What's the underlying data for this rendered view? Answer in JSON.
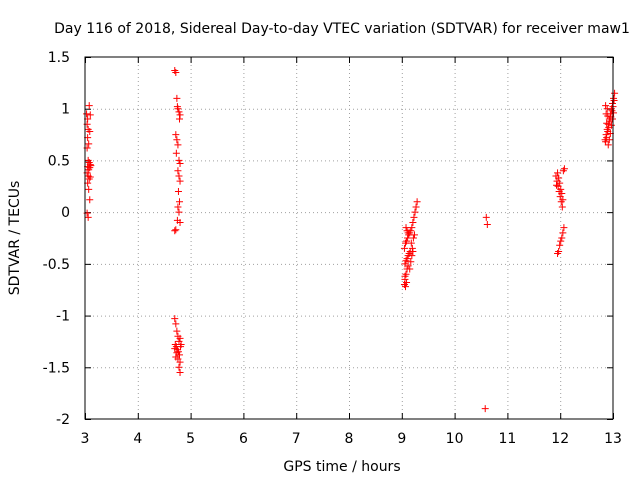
{
  "chart_data": {
    "type": "scatter",
    "title": "Day 116 of 2018, Sidereal Day-to-day VTEC variation (SDTVAR) for receiver maw1",
    "xlabel": "GPS time / hours",
    "ylabel": "SDTVAR / TECUs",
    "xlim": [
      3,
      13
    ],
    "ylim": [
      -2,
      1.5
    ],
    "xticks": [
      3,
      4,
      5,
      6,
      7,
      8,
      9,
      10,
      11,
      12,
      13
    ],
    "xtick_labels": [
      "3",
      "4",
      "5",
      "6",
      "7",
      "8",
      "9",
      "10",
      "11",
      "12",
      "13"
    ],
    "yticks": [
      -2,
      -1.5,
      -1,
      -0.5,
      0,
      0.5,
      1,
      1.5
    ],
    "ytick_labels": [
      "-2",
      "-1.5",
      "-1",
      "-0.5",
      "0",
      "0.5",
      "1",
      "1.5"
    ],
    "grid": true,
    "marker": "+",
    "color": "#ff0000",
    "series": [
      {
        "name": "maw1",
        "points": [
          [
            3.03,
            0.95
          ],
          [
            3.05,
            0.9
          ],
          [
            3.08,
            1.03
          ],
          [
            3.1,
            0.94
          ],
          [
            3.04,
            0.85
          ],
          [
            3.06,
            0.8
          ],
          [
            3.09,
            0.78
          ],
          [
            3.05,
            0.72
          ],
          [
            3.07,
            0.66
          ],
          [
            3.04,
            0.62
          ],
          [
            3.06,
            0.5
          ],
          [
            3.08,
            0.48
          ],
          [
            3.1,
            0.46
          ],
          [
            3.05,
            0.44
          ],
          [
            3.07,
            0.41
          ],
          [
            3.09,
            0.43
          ],
          [
            3.11,
            0.45
          ],
          [
            3.04,
            0.38
          ],
          [
            3.06,
            0.35
          ],
          [
            3.08,
            0.32
          ],
          [
            3.1,
            0.34
          ],
          [
            3.05,
            0.28
          ],
          [
            3.07,
            0.22
          ],
          [
            3.09,
            0.12
          ],
          [
            3.04,
            -0.01
          ],
          [
            3.06,
            -0.05
          ],
          [
            4.7,
            1.37
          ],
          [
            4.72,
            1.35
          ],
          [
            4.74,
            1.1
          ],
          [
            4.76,
            1.0
          ],
          [
            4.78,
            0.97
          ],
          [
            4.8,
            0.94
          ],
          [
            4.75,
            1.02
          ],
          [
            4.79,
            0.9
          ],
          [
            4.72,
            0.75
          ],
          [
            4.74,
            0.7
          ],
          [
            4.76,
            0.65
          ],
          [
            4.73,
            0.57
          ],
          [
            4.78,
            0.5
          ],
          [
            4.8,
            0.47
          ],
          [
            4.76,
            0.4
          ],
          [
            4.78,
            0.35
          ],
          [
            4.8,
            0.3
          ],
          [
            4.77,
            0.2
          ],
          [
            4.79,
            0.1
          ],
          [
            4.76,
            0.05
          ],
          [
            4.78,
            0.0
          ],
          [
            4.75,
            -0.08
          ],
          [
            4.72,
            -0.17
          ],
          [
            4.7,
            -0.18
          ],
          [
            4.8,
            -0.1
          ],
          [
            4.7,
            -1.03
          ],
          [
            4.72,
            -1.08
          ],
          [
            4.74,
            -1.15
          ],
          [
            4.76,
            -1.2
          ],
          [
            4.78,
            -1.25
          ],
          [
            4.8,
            -1.22
          ],
          [
            4.71,
            -1.28
          ],
          [
            4.73,
            -1.3
          ],
          [
            4.75,
            -1.33
          ],
          [
            4.77,
            -1.35
          ],
          [
            4.79,
            -1.38
          ],
          [
            4.81,
            -1.3
          ],
          [
            4.72,
            -1.4
          ],
          [
            4.76,
            -1.42
          ],
          [
            4.8,
            -1.45
          ],
          [
            4.78,
            -1.5
          ],
          [
            4.8,
            -1.55
          ],
          [
            4.74,
            -1.36
          ],
          [
            4.82,
            -1.28
          ],
          [
            4.7,
            -1.32
          ],
          [
            9.05,
            -0.7
          ],
          [
            9.06,
            -0.65
          ],
          [
            9.08,
            -0.6
          ],
          [
            9.1,
            -0.55
          ],
          [
            9.12,
            -0.52
          ],
          [
            9.06,
            -0.5
          ],
          [
            9.08,
            -0.47
          ],
          [
            9.1,
            -0.45
          ],
          [
            9.12,
            -0.42
          ],
          [
            9.14,
            -0.4
          ],
          [
            9.16,
            -0.38
          ],
          [
            9.05,
            -0.35
          ],
          [
            9.07,
            -0.3
          ],
          [
            9.09,
            -0.28
          ],
          [
            9.11,
            -0.25
          ],
          [
            9.13,
            -0.22
          ],
          [
            9.15,
            -0.2
          ],
          [
            9.17,
            -0.18
          ],
          [
            9.19,
            -0.15
          ],
          [
            9.21,
            -0.1
          ],
          [
            9.23,
            -0.05
          ],
          [
            9.25,
            0.0
          ],
          [
            9.27,
            0.05
          ],
          [
            9.29,
            0.1
          ],
          [
            9.08,
            -0.15
          ],
          [
            9.1,
            -0.18
          ],
          [
            9.12,
            -0.2
          ],
          [
            9.18,
            -0.3
          ],
          [
            9.2,
            -0.35
          ],
          [
            9.22,
            -0.25
          ],
          [
            9.24,
            -0.22
          ],
          [
            9.06,
            -0.62
          ],
          [
            9.09,
            -0.68
          ],
          [
            9.15,
            -0.55
          ],
          [
            9.17,
            -0.48
          ],
          [
            9.07,
            -0.72
          ],
          [
            9.19,
            -0.42
          ],
          [
            9.21,
            -0.38
          ],
          [
            10.6,
            -0.05
          ],
          [
            10.62,
            -0.12
          ],
          [
            10.58,
            -1.9
          ],
          [
            11.92,
            0.35
          ],
          [
            11.94,
            0.3
          ],
          [
            11.96,
            0.25
          ],
          [
            11.98,
            0.2
          ],
          [
            12.0,
            0.15
          ],
          [
            12.02,
            0.1
          ],
          [
            12.04,
            0.05
          ],
          [
            12.06,
            0.4
          ],
          [
            12.08,
            0.42
          ],
          [
            11.95,
            0.38
          ],
          [
            11.97,
            0.33
          ],
          [
            11.99,
            0.28
          ],
          [
            12.01,
            0.22
          ],
          [
            12.03,
            0.18
          ],
          [
            11.93,
            0.26
          ],
          [
            12.05,
            0.12
          ],
          [
            12.07,
            -0.15
          ],
          [
            12.05,
            -0.2
          ],
          [
            12.03,
            -0.25
          ],
          [
            12.01,
            -0.28
          ],
          [
            11.99,
            -0.32
          ],
          [
            11.97,
            -0.38
          ],
          [
            11.95,
            -0.4
          ],
          [
            12.85,
            0.7
          ],
          [
            12.87,
            0.75
          ],
          [
            12.89,
            0.8
          ],
          [
            12.91,
            0.85
          ],
          [
            12.93,
            0.9
          ],
          [
            12.95,
            0.95
          ],
          [
            12.97,
            1.0
          ],
          [
            12.99,
            1.05
          ],
          [
            13.01,
            1.1
          ],
          [
            13.03,
            1.15
          ],
          [
            12.86,
            0.68
          ],
          [
            12.88,
            0.72
          ],
          [
            12.9,
            0.78
          ],
          [
            12.92,
            0.82
          ],
          [
            12.94,
            0.88
          ],
          [
            12.96,
            0.92
          ],
          [
            12.98,
            0.98
          ],
          [
            13.0,
            1.02
          ],
          [
            13.02,
            1.08
          ],
          [
            12.87,
            0.95
          ],
          [
            12.89,
            1.0
          ],
          [
            12.91,
            0.65
          ],
          [
            12.93,
            0.7
          ],
          [
            12.95,
            0.76
          ],
          [
            12.97,
            0.84
          ],
          [
            12.99,
            0.9
          ],
          [
            13.01,
            0.96
          ],
          [
            12.86,
            1.03
          ],
          [
            12.88,
            0.86
          ],
          [
            12.9,
            0.93
          ]
        ]
      }
    ]
  }
}
